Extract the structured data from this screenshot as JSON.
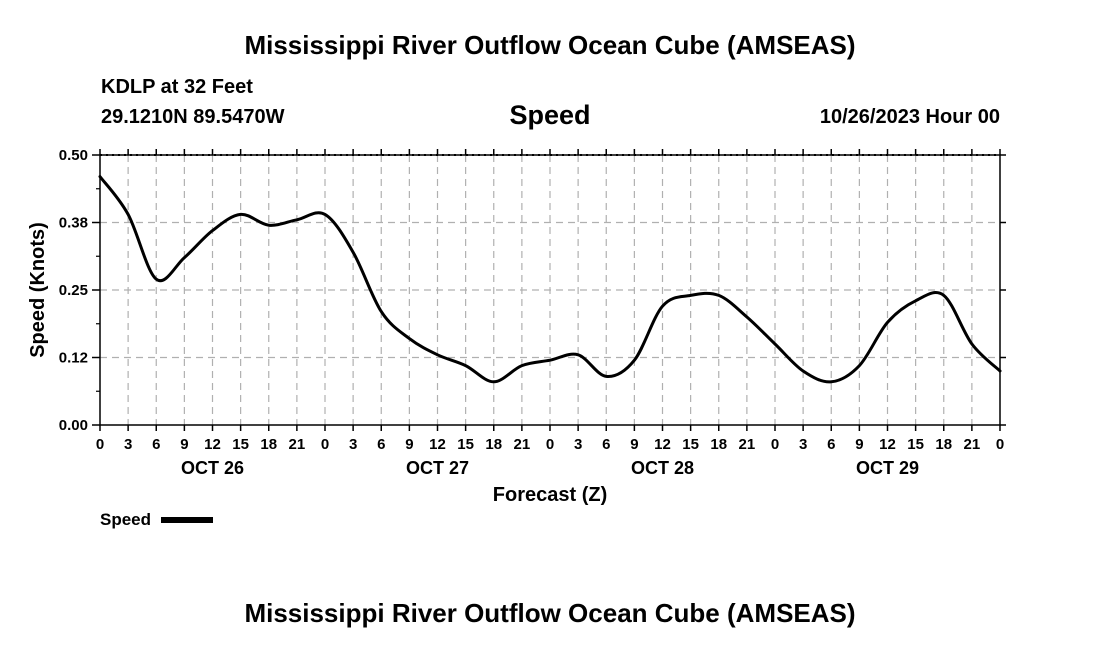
{
  "header": {
    "title": "Mississippi River Outflow Ocean Cube (AMSEAS)",
    "station": "KDLP at 32 Feet",
    "coordinates": "29.1210N  89.5470W",
    "chart_title": "Speed",
    "datetime": "10/26/2023 Hour 00"
  },
  "footer": {
    "title": "Mississippi River Outflow Ocean Cube (AMSEAS)"
  },
  "legend": {
    "label": "Speed",
    "color": "#000000"
  },
  "chart_data": {
    "type": "line",
    "title": "Speed",
    "xlabel": "Forecast (Z)",
    "ylabel": "Speed (Knots)",
    "ylim": [
      0,
      0.5
    ],
    "xlim": [
      0,
      96
    ],
    "y_ticks": [
      "0.00",
      "0.12",
      "0.25",
      "0.38",
      "0.50"
    ],
    "x_tick_labels": [
      "0",
      "3",
      "6",
      "9",
      "12",
      "15",
      "18",
      "21",
      "0",
      "3",
      "6",
      "9",
      "12",
      "15",
      "18",
      "21",
      "0",
      "3",
      "6",
      "9",
      "12",
      "15",
      "18",
      "21",
      "0",
      "3",
      "6",
      "9",
      "12",
      "15",
      "18",
      "21",
      "0"
    ],
    "day_labels": [
      "OCT 26",
      "OCT 27",
      "OCT 28",
      "OCT 29"
    ],
    "grid": true,
    "legend_position": "bottom-left",
    "series": [
      {
        "name": "Speed",
        "color": "#000000",
        "x": [
          0,
          3,
          6,
          9,
          12,
          15,
          18,
          21,
          24,
          27,
          30,
          33,
          36,
          39,
          42,
          45,
          48,
          51,
          54,
          57,
          60,
          63,
          66,
          69,
          72,
          75,
          78,
          81,
          84,
          87,
          90,
          93,
          96
        ],
        "y": [
          0.46,
          0.39,
          0.27,
          0.31,
          0.36,
          0.39,
          0.37,
          0.38,
          0.39,
          0.32,
          0.21,
          0.16,
          0.13,
          0.11,
          0.08,
          0.11,
          0.12,
          0.13,
          0.09,
          0.12,
          0.22,
          0.24,
          0.24,
          0.2,
          0.15,
          0.1,
          0.08,
          0.11,
          0.19,
          0.23,
          0.24,
          0.15,
          0.1
        ]
      }
    ]
  }
}
